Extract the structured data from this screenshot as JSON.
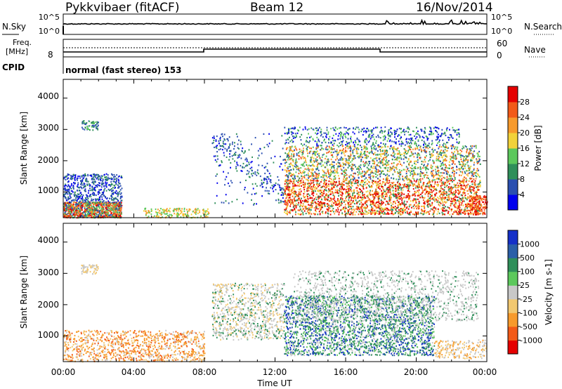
{
  "header": {
    "station": "Pykkvibaer (fitACF)",
    "beam": "Beam 12",
    "date": "16/Nov/2014"
  },
  "noise_panel": {
    "left_label": "N.Sky",
    "left_ticks": [
      "10^5",
      "10^0"
    ],
    "right_ticks": [
      "10^5",
      "10^0"
    ],
    "right_label": "N.Search"
  },
  "freq_panel": {
    "left_label_top": "Freq.",
    "left_label_bottom": "[MHz]",
    "left_tick": "8",
    "right_ticks": [
      "60",
      "0"
    ],
    "right_label": "Nave",
    "cpid_label": "CPID",
    "cpid_text": "normal (fast stereo) 153"
  },
  "x_axis": {
    "ticks": [
      "00:00",
      "04:00",
      "08:00",
      "12:00",
      "16:00",
      "20:00",
      "00:00"
    ],
    "label": "Time UT"
  },
  "power_panel": {
    "ylabel": "Slant Range [km]",
    "yticks": [
      "1000",
      "2000",
      "3000",
      "4000"
    ],
    "colorbar_label": "Power [dB]",
    "colorbar_ticks": [
      "4",
      "8",
      "12",
      "16",
      "20",
      "24",
      "28"
    ],
    "colors": [
      "#0000ee",
      "#2a4fb0",
      "#2f8f5a",
      "#5cc85c",
      "#f2d23a",
      "#f79a2c",
      "#f25a18",
      "#e50000"
    ]
  },
  "velocity_panel": {
    "ylabel": "Slant Range [km]",
    "yticks": [
      "1000",
      "2000",
      "3000",
      "4000"
    ],
    "colorbar_label": "Velocity [m s-1]",
    "colorbar_ticks": [
      "1000",
      "500",
      "100",
      "25",
      "-25",
      "-100",
      "-500",
      "-1000"
    ],
    "colors": [
      "#1530c8",
      "#2a5fa8",
      "#2f8f5a",
      "#5cc85c",
      "#c8c8c8",
      "#f2c870",
      "#f79a2c",
      "#f25a18",
      "#e50000"
    ]
  },
  "chart_data": [
    {
      "type": "heatmap",
      "title": "Power",
      "x_range_hours": [
        0,
        24
      ],
      "y_range_km": [
        180,
        4600
      ],
      "scatter_regions": [
        {
          "t": [
            0,
            3.3
          ],
          "r": [
            200,
            1600
          ],
          "dominant": "low-mid power"
        },
        {
          "t": [
            0.9,
            2.0
          ],
          "r": [
            3000,
            3300
          ],
          "dominant": "mid power"
        },
        {
          "t": [
            8.4,
            12.5
          ],
          "r": [
            600,
            2900
          ],
          "dominant": "low power arc"
        },
        {
          "t": [
            12.5,
            23.6
          ],
          "r": [
            300,
            3100
          ],
          "dominant": "high power"
        },
        {
          "t": [
            23,
            24
          ],
          "r": [
            300,
            900
          ],
          "dominant": "high power"
        }
      ]
    },
    {
      "type": "heatmap",
      "title": "Velocity",
      "x_range_hours": [
        0,
        24
      ],
      "y_range_km": [
        180,
        4600
      ],
      "scatter_regions": [
        {
          "t": [
            0,
            8
          ],
          "r": [
            200,
            1200
          ],
          "dominant": "negative (orange)"
        },
        {
          "t": [
            8.4,
            12.5
          ],
          "r": [
            900,
            2700
          ],
          "dominant": "near-zero (grey)"
        },
        {
          "t": [
            12.5,
            21
          ],
          "r": [
            400,
            2300
          ],
          "dominant": "positive (green)"
        },
        {
          "t": [
            13,
            23.5
          ],
          "r": [
            1500,
            3100
          ],
          "dominant": "near-zero (grey)"
        }
      ]
    }
  ]
}
